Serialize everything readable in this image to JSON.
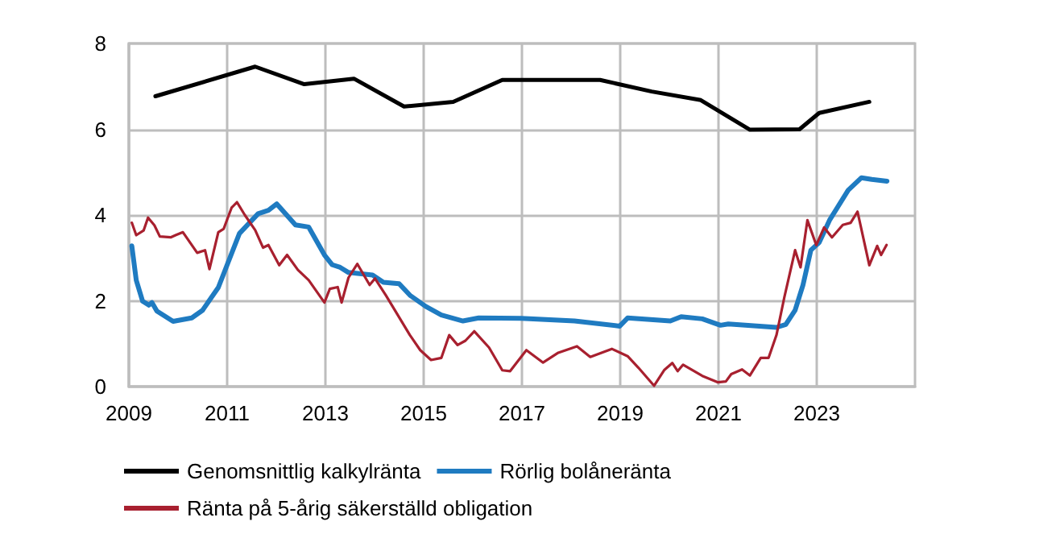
{
  "chart_data": {
    "type": "line",
    "xlim": [
      2009,
      2025
    ],
    "xticks": [
      2009,
      2011,
      2013,
      2015,
      2017,
      2019,
      2021,
      2023
    ],
    "ylim": [
      0,
      8
    ],
    "yticks": [
      0,
      2,
      4,
      6,
      8
    ],
    "grid": true,
    "legend": "bottom",
    "marker": "none",
    "line_style": "solid",
    "series": [
      {
        "name": "Genomsnittlig kalkylränta",
        "color": "#000000",
        "x": [
          2009.54,
          2011.57,
          2012.57,
          2013.58,
          2014.6,
          2015.6,
          2016.6,
          2018.59,
          2019.64,
          2020.64,
          2021.64,
          2022.65,
          2023.05,
          2024.07
        ],
        "values": [
          6.77,
          7.46,
          7.05,
          7.18,
          6.53,
          6.64,
          7.15,
          7.15,
          6.88,
          6.68,
          5.99,
          6.0,
          6.38,
          6.64
        ]
      },
      {
        "name": "Rörlig bolåneränta",
        "color": "#1f7bc1",
        "x": [
          2009.06,
          2009.15,
          2009.28,
          2009.41,
          2009.47,
          2009.57,
          2009.9,
          2010.28,
          2010.5,
          2010.82,
          2011.25,
          2011.63,
          2011.84,
          2012.01,
          2012.39,
          2012.66,
          2012.98,
          2013.14,
          2013.3,
          2013.47,
          2013.96,
          2014.18,
          2014.5,
          2014.72,
          2015.04,
          2015.36,
          2015.8,
          2016.12,
          2016.98,
          2018.07,
          2018.99,
          2019.15,
          2020.02,
          2020.24,
          2020.67,
          2021.04,
          2021.2,
          2022.18,
          2022.37,
          2022.56,
          2022.72,
          2022.88,
          2023.05,
          2023.26,
          2023.64,
          2023.91,
          2024.12,
          2024.43
        ],
        "values": [
          3.28,
          2.48,
          1.99,
          1.9,
          1.96,
          1.76,
          1.52,
          1.6,
          1.78,
          2.31,
          3.57,
          4.03,
          4.11,
          4.26,
          3.77,
          3.72,
          3.07,
          2.84,
          2.78,
          2.66,
          2.6,
          2.43,
          2.4,
          2.13,
          1.87,
          1.67,
          1.53,
          1.6,
          1.59,
          1.53,
          1.41,
          1.6,
          1.53,
          1.63,
          1.58,
          1.43,
          1.46,
          1.38,
          1.45,
          1.78,
          2.37,
          3.18,
          3.36,
          3.88,
          4.58,
          4.87,
          4.83,
          4.79
        ]
      },
      {
        "name": "Ränta på 5-årig säkerställd obligation",
        "color": "#a8202f",
        "x": [
          2009.06,
          2009.15,
          2009.3,
          2009.39,
          2009.52,
          2009.63,
          2009.85,
          2009.95,
          2010.1,
          2010.39,
          2010.55,
          2010.64,
          2010.82,
          2010.93,
          2011.09,
          2011.2,
          2011.36,
          2011.57,
          2011.73,
          2011.84,
          2012.06,
          2012.22,
          2012.44,
          2012.66,
          2012.98,
          2013.09,
          2013.25,
          2013.33,
          2013.47,
          2013.65,
          2013.9,
          2014.01,
          2014.23,
          2014.72,
          2014.93,
          2015.15,
          2015.36,
          2015.52,
          2015.69,
          2015.85,
          2016.03,
          2016.33,
          2016.6,
          2016.76,
          2017.09,
          2017.43,
          2017.74,
          2018.12,
          2018.39,
          2018.83,
          2019.15,
          2019.37,
          2019.69,
          2019.9,
          2020.06,
          2020.17,
          2020.28,
          2020.67,
          2020.99,
          2021.15,
          2021.26,
          2021.48,
          2021.64,
          2021.86,
          2022.02,
          2022.18,
          2022.34,
          2022.56,
          2022.67,
          2022.81,
          2022.99,
          2023.15,
          2023.31,
          2023.53,
          2023.69,
          2023.83,
          2024.07,
          2024.23,
          2024.31,
          2024.42
        ],
        "values": [
          3.82,
          3.53,
          3.64,
          3.94,
          3.76,
          3.5,
          3.48,
          3.53,
          3.6,
          3.12,
          3.18,
          2.74,
          3.6,
          3.68,
          4.17,
          4.3,
          4.0,
          3.65,
          3.24,
          3.3,
          2.83,
          3.07,
          2.72,
          2.48,
          1.96,
          2.28,
          2.32,
          1.96,
          2.54,
          2.86,
          2.37,
          2.52,
          2.13,
          1.2,
          0.85,
          0.62,
          0.67,
          1.2,
          0.97,
          1.07,
          1.29,
          0.91,
          0.38,
          0.36,
          0.85,
          0.56,
          0.79,
          0.94,
          0.69,
          0.88,
          0.71,
          0.44,
          0.02,
          0.39,
          0.55,
          0.36,
          0.51,
          0.25,
          0.1,
          0.12,
          0.29,
          0.4,
          0.26,
          0.67,
          0.67,
          1.2,
          2.08,
          3.18,
          2.78,
          3.88,
          3.3,
          3.71,
          3.48,
          3.77,
          3.82,
          4.08,
          2.83,
          3.28,
          3.07,
          3.3
        ]
      }
    ]
  }
}
